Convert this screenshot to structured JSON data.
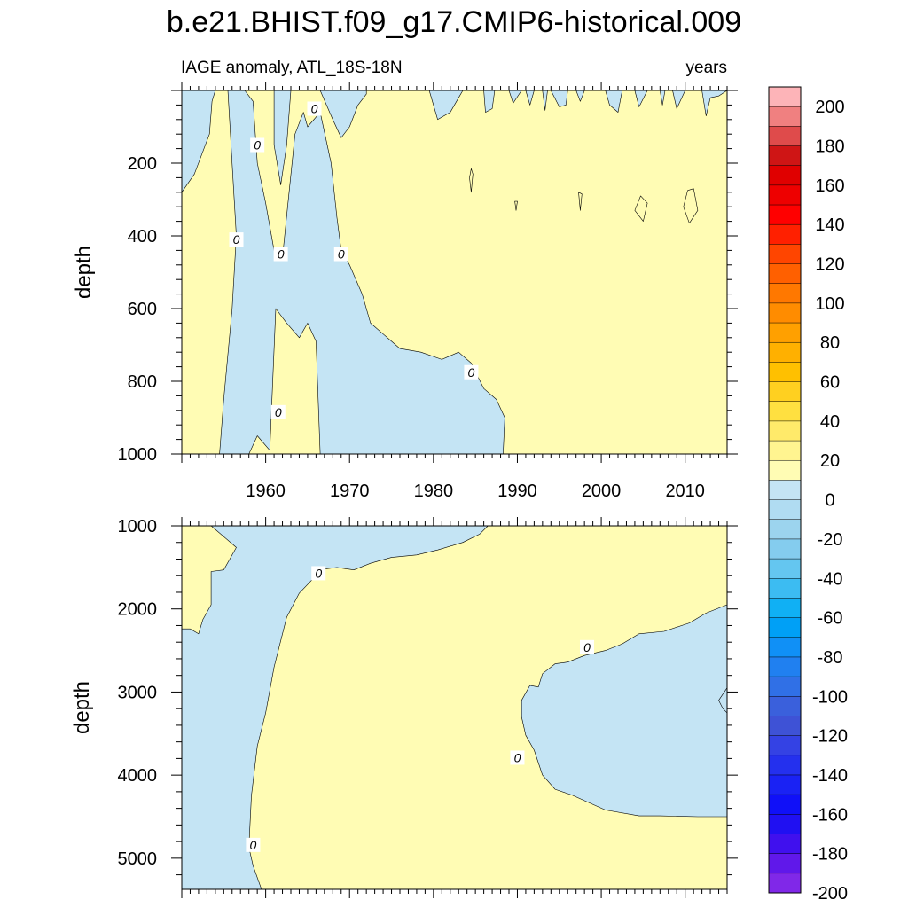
{
  "title": "b.e21.BHIST.f09_g17.CMIP6-historical.009",
  "colors": {
    "positive_fill": "#FFFCB4",
    "negative_fill": "#C4E4F4",
    "frame": "#000000",
    "contour_line": "#000000"
  },
  "chart_data": [
    {
      "type": "heatmap",
      "subtitle_left": "IAGE anomaly, ATL_18S-18N",
      "subtitle_right": "years",
      "ylabel": "depth",
      "y_reversed": true,
      "xlim": [
        1950,
        2015
      ],
      "ylim": [
        0,
        1000
      ],
      "x_ticks": [
        1960,
        1970,
        1980,
        1990,
        2000,
        2010
      ],
      "x_tick_labels": [
        "1960",
        "1970",
        "1980",
        "1990",
        "2000",
        "2010"
      ],
      "y_ticks": [
        200,
        400,
        600,
        800,
        1000
      ],
      "y_tick_labels": [
        "200",
        "400",
        "600",
        "800",
        "1000"
      ],
      "background_sign": "positive",
      "negative_regions": [
        [
          [
            1950,
            0
          ],
          [
            1950,
            280
          ],
          [
            1951.5,
            230
          ],
          [
            1953.3,
            120
          ],
          [
            1953.6,
            30
          ],
          [
            1954,
            0
          ]
        ],
        [
          [
            1955.5,
            0
          ],
          [
            1956.5,
            400
          ],
          [
            1956,
            600
          ],
          [
            1955,
            850
          ],
          [
            1954.5,
            1000
          ],
          [
            1958,
            1000
          ],
          [
            1959,
            950
          ],
          [
            1960.5,
            990
          ],
          [
            1961.2,
            600
          ],
          [
            1962.5,
            640
          ],
          [
            1964,
            680
          ],
          [
            1965,
            640
          ],
          [
            1966,
            690
          ],
          [
            1966.5,
            1000
          ],
          [
            1988.3,
            1000
          ],
          [
            1988.5,
            900
          ],
          [
            1987.5,
            850
          ],
          [
            1986,
            820
          ],
          [
            1984.5,
            750
          ],
          [
            1983,
            720
          ],
          [
            1981,
            740
          ],
          [
            1978.5,
            720
          ],
          [
            1976,
            710
          ],
          [
            1974,
            670
          ],
          [
            1972.5,
            640
          ],
          [
            1971.5,
            560
          ],
          [
            1970,
            480
          ],
          [
            1969,
            440
          ],
          [
            1968.5,
            350
          ],
          [
            1967.8,
            200
          ],
          [
            1966.5,
            60
          ],
          [
            1965,
            100
          ],
          [
            1964.5,
            60
          ],
          [
            1963.5,
            120
          ],
          [
            1962,
            460
          ],
          [
            1961,
            440
          ],
          [
            1960,
            310
          ],
          [
            1959,
            200
          ],
          [
            1958.5,
            30
          ],
          [
            1957.5,
            0
          ]
        ],
        [
          [
            1961,
            0
          ],
          [
            1961,
            150
          ],
          [
            1961.8,
            260
          ],
          [
            1962.5,
            150
          ],
          [
            1963,
            0
          ]
        ],
        [
          [
            1966.5,
            0
          ],
          [
            1968,
            80
          ],
          [
            1969,
            130
          ],
          [
            1970,
            100
          ],
          [
            1971,
            40
          ],
          [
            1972,
            10
          ],
          [
            1972,
            0
          ]
        ],
        [
          [
            1979.5,
            0
          ],
          [
            1980.5,
            80
          ],
          [
            1982,
            60
          ],
          [
            1983,
            20
          ],
          [
            1983.5,
            0
          ]
        ],
        [
          [
            1986,
            0
          ],
          [
            1986.2,
            60
          ],
          [
            1987,
            50
          ],
          [
            1987.3,
            0
          ]
        ],
        [
          [
            1989,
            0
          ],
          [
            1989.5,
            35
          ],
          [
            1990.5,
            0
          ]
        ],
        [
          [
            1991,
            0
          ],
          [
            1991.5,
            40
          ],
          [
            1992,
            0
          ]
        ],
        [
          [
            1993,
            0
          ],
          [
            1993.3,
            55
          ],
          [
            1993.6,
            0
          ]
        ],
        [
          [
            1994,
            0
          ],
          [
            1995,
            45
          ],
          [
            1995.8,
            40
          ],
          [
            1996,
            0
          ]
        ],
        [
          [
            1997,
            0
          ],
          [
            1997.5,
            30
          ],
          [
            1998,
            0
          ]
        ],
        [
          [
            2000.5,
            0
          ],
          [
            2001,
            40
          ],
          [
            2002,
            60
          ],
          [
            2002.5,
            0
          ]
        ],
        [
          [
            2004,
            0
          ],
          [
            2004.5,
            45
          ],
          [
            2005.5,
            0
          ]
        ],
        [
          [
            2007,
            0
          ],
          [
            2007.3,
            40
          ],
          [
            2007.6,
            0
          ]
        ],
        [
          [
            2008.5,
            0
          ],
          [
            2009,
            50
          ],
          [
            2010,
            0
          ]
        ],
        [
          [
            2012,
            0
          ],
          [
            2012.5,
            70
          ],
          [
            2013,
            20
          ],
          [
            2014,
            15
          ],
          [
            2015,
            0
          ]
        ]
      ],
      "positive_islands": [
        [
          [
            1984.3,
            240
          ],
          [
            1984.5,
            280
          ],
          [
            1984.7,
            230
          ],
          [
            1984.5,
            215
          ]
        ],
        [
          [
            1989.7,
            305
          ],
          [
            1989.85,
            330
          ],
          [
            1990,
            305
          ]
        ],
        [
          [
            1997.3,
            280
          ],
          [
            1997.5,
            330
          ],
          [
            1997.7,
            285
          ]
        ],
        [
          [
            2004,
            330
          ],
          [
            2005,
            360
          ],
          [
            2005.5,
            310
          ],
          [
            2004.7,
            290
          ]
        ],
        [
          [
            2009.8,
            320
          ],
          [
            2010.5,
            365
          ],
          [
            2011.5,
            330
          ],
          [
            2011,
            270
          ],
          [
            2010.3,
            275
          ]
        ]
      ],
      "contour_labels": [
        {
          "x": 1965.8,
          "y": 50,
          "text": "0"
        },
        {
          "x": 1959,
          "y": 150,
          "text": "0"
        },
        {
          "x": 1956.5,
          "y": 410,
          "text": "0"
        },
        {
          "x": 1961.8,
          "y": 450,
          "text": "0"
        },
        {
          "x": 1969,
          "y": 450,
          "text": "0"
        },
        {
          "x": 1984.5,
          "y": 775,
          "text": "0"
        },
        {
          "x": 1961.5,
          "y": 885,
          "text": "0"
        }
      ]
    },
    {
      "type": "heatmap",
      "subtitle_left": "",
      "subtitle_right": "",
      "ylabel": "depth",
      "y_reversed": true,
      "xlim": [
        1950,
        2015
      ],
      "ylim": [
        1000,
        5375
      ],
      "x_ticks": [
        1960,
        1970,
        1980,
        1990,
        2000,
        2010
      ],
      "x_tick_labels": [],
      "y_ticks": [
        1000,
        2000,
        3000,
        4000,
        5000
      ],
      "y_tick_labels": [
        "1000",
        "2000",
        "3000",
        "4000",
        "5000"
      ],
      "background_sign": "positive",
      "negative_regions": [
        [
          [
            1953.5,
            1000
          ],
          [
            1956.5,
            1260
          ],
          [
            1955,
            1530
          ],
          [
            1953.5,
            1550
          ],
          [
            1953.5,
            1950
          ],
          [
            1952.5,
            2130
          ],
          [
            1952,
            2300
          ],
          [
            1951,
            2240
          ],
          [
            1950,
            2240
          ],
          [
            1950,
            5375
          ],
          [
            1959.5,
            5375
          ],
          [
            1958.5,
            5090
          ],
          [
            1958,
            4870
          ],
          [
            1958.3,
            4250
          ],
          [
            1959,
            3650
          ],
          [
            1960,
            3250
          ],
          [
            1961,
            2700
          ],
          [
            1962.5,
            2100
          ],
          [
            1964,
            1810
          ],
          [
            1966,
            1600
          ],
          [
            1967,
            1520
          ],
          [
            1968.5,
            1500
          ],
          [
            1970.5,
            1530
          ],
          [
            1972.5,
            1450
          ],
          [
            1975,
            1380
          ],
          [
            1978,
            1350
          ],
          [
            1980.5,
            1290
          ],
          [
            1983.5,
            1200
          ],
          [
            1985.5,
            1100
          ],
          [
            1986.5,
            1000
          ]
        ],
        [
          [
            2015,
            1950
          ],
          [
            2012.5,
            2050
          ],
          [
            2010.5,
            2170
          ],
          [
            2007.5,
            2270
          ],
          [
            2004.5,
            2300
          ],
          [
            2002.5,
            2420
          ],
          [
            2000.5,
            2500
          ],
          [
            1998,
            2560
          ],
          [
            1996,
            2640
          ],
          [
            1994.5,
            2660
          ],
          [
            1993,
            2780
          ],
          [
            1992.5,
            2940
          ],
          [
            1991.5,
            2920
          ],
          [
            1990.5,
            3100
          ],
          [
            1990.5,
            3300
          ],
          [
            1991,
            3520
          ],
          [
            1992,
            3700
          ],
          [
            1993,
            4000
          ],
          [
            1994.5,
            4170
          ],
          [
            1996.5,
            4240
          ],
          [
            2000.5,
            4420
          ],
          [
            2004.5,
            4490
          ],
          [
            2007,
            4490
          ],
          [
            2011.5,
            4500
          ],
          [
            2015,
            4500
          ]
        ],
        [
          [
            2015,
            2950
          ],
          [
            2014,
            3100
          ],
          [
            2014.5,
            3200
          ],
          [
            2015,
            3250
          ]
        ]
      ],
      "positive_islands": [],
      "contour_labels": [
        {
          "x": 1966.3,
          "y": 1570,
          "text": "0"
        },
        {
          "x": 1998.3,
          "y": 2460,
          "text": "0"
        },
        {
          "x": 1990,
          "y": 3790,
          "text": "0"
        },
        {
          "x": 1958.5,
          "y": 4840,
          "text": "0"
        }
      ]
    }
  ],
  "colorbar": {
    "labels": [
      "200",
      "180",
      "160",
      "140",
      "120",
      "100",
      "80",
      "60",
      "40",
      "20",
      "0",
      "-20",
      "-40",
      "-60",
      "-80",
      "-100",
      "-120",
      "-140",
      "-160",
      "-180",
      "-200"
    ],
    "colors": [
      "#FDB4B8",
      "#F08080",
      "#DF4B4B",
      "#CF1515",
      "#E00000",
      "#EE0000",
      "#FF0000",
      "#FF2000",
      "#FF4500",
      "#FF6000",
      "#FF7800",
      "#FF8C00",
      "#FFA000",
      "#FFB000",
      "#FFC000",
      "#FFD020",
      "#FFE040",
      "#FFEA6A",
      "#FFF490",
      "#FFFCB4",
      "#C4E4F4",
      "#B0DCF2",
      "#9CD4EE",
      "#84CCEE",
      "#64C6F0",
      "#3CBCF2",
      "#10B0F4",
      "#00A0F6",
      "#1090F6",
      "#2080F0",
      "#3070E6",
      "#3A60DC",
      "#3E52D6",
      "#3442E4",
      "#2430EE",
      "#1A22F4",
      "#1010F8",
      "#2010F2",
      "#4010EE",
      "#6018EA",
      "#8028E8"
    ]
  }
}
